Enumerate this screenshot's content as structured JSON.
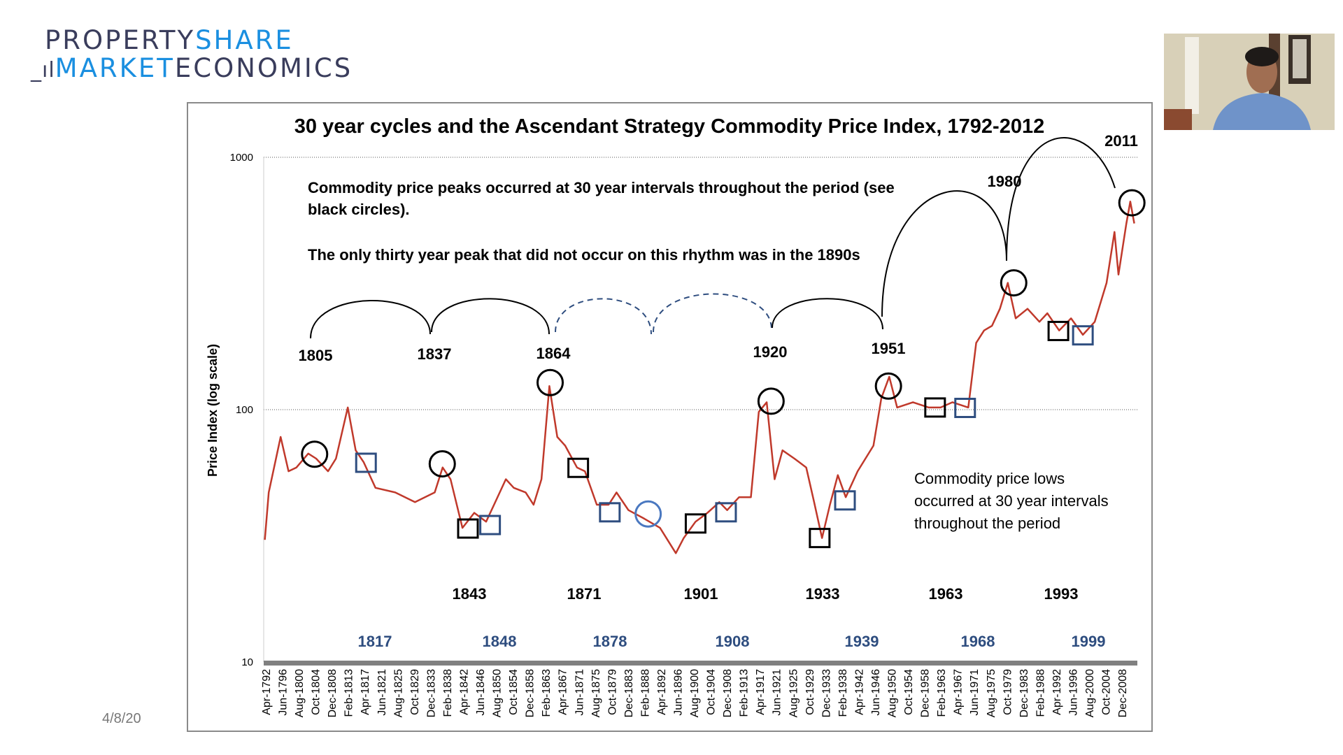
{
  "logo": {
    "line1_a": "PROPERTY",
    "line1_b": "SHARE",
    "line2_a": "MARKET",
    "line2_b": "ECONOMICS"
  },
  "slide_date": "4/8/20",
  "webcam": {
    "label": "presenter video"
  },
  "chart_data": {
    "type": "line",
    "title": "30 year cycles and the Ascendant Strategy Commodity Price Index, 1792-2012",
    "ylabel": "Price Index (log scale)",
    "xlabel": "",
    "yscale": "log",
    "ylim": [
      10,
      1000
    ],
    "yticks": [
      "1000",
      "100",
      "10"
    ],
    "xlim": [
      1792,
      2012
    ],
    "grid": "horizontal dotted at 100 and 1000",
    "line_color": "#c0392b",
    "xtick_labels": [
      "Apr-1792",
      "Jun-1796",
      "Aug-1800",
      "Oct-1804",
      "Dec-1808",
      "Feb-1813",
      "Apr-1817",
      "Jun-1821",
      "Aug-1825",
      "Oct-1829",
      "Dec-1833",
      "Feb-1838",
      "Apr-1842",
      "Jun-1846",
      "Aug-1850",
      "Oct-1854",
      "Dec-1858",
      "Feb-1863",
      "Apr-1867",
      "Jun-1871",
      "Aug-1875",
      "Oct-1879",
      "Dec-1883",
      "Feb-1888",
      "Apr-1892",
      "Jun-1896",
      "Aug-1900",
      "Oct-1904",
      "Dec-1908",
      "Feb-1913",
      "Apr-1917",
      "Jun-1921",
      "Aug-1925",
      "Oct-1929",
      "Dec-1933",
      "Feb-1938",
      "Apr-1942",
      "Jun-1946",
      "Aug-1950",
      "Oct-1954",
      "Dec-1958",
      "Feb-1963",
      "Apr-1967",
      "Jun-1971",
      "Aug-1975",
      "Oct-1979",
      "Dec-1983",
      "Feb-1988",
      "Apr-1992",
      "Jun-1996",
      "Aug-2000",
      "Oct-2004",
      "Dec-2008"
    ],
    "series": [
      {
        "x": [
          1792,
          1793,
          1796,
          1798,
          1800,
          1803,
          1805,
          1808,
          1810,
          1813,
          1815,
          1817,
          1820,
          1825,
          1830,
          1835,
          1837,
          1839,
          1842,
          1845,
          1848,
          1850,
          1853,
          1855,
          1858,
          1860,
          1862,
          1864,
          1866,
          1868,
          1871,
          1873,
          1876,
          1879,
          1881,
          1884,
          1888,
          1892,
          1896,
          1898,
          1901,
          1904,
          1907,
          1909,
          1912,
          1915,
          1917,
          1919,
          1921,
          1923,
          1926,
          1929,
          1931,
          1933,
          1935,
          1937,
          1939,
          1942,
          1946,
          1948,
          1950,
          1952,
          1956,
          1960,
          1963,
          1966,
          1970,
          1972,
          1974,
          1976,
          1978,
          1980,
          1982,
          1985,
          1988,
          1990,
          1993,
          1996,
          1999,
          2002,
          2005,
          2007,
          2008,
          2010,
          2011,
          2012
        ],
        "y": [
          30.5,
          47,
          78,
          57,
          59,
          67,
          64,
          57,
          64,
          102,
          69,
          62,
          49,
          47,
          43,
          47,
          59,
          53,
          34,
          39,
          36,
          42,
          53,
          49,
          47,
          42,
          53,
          124,
          78,
          72,
          59,
          57,
          42,
          42,
          47,
          40,
          37,
          34,
          27,
          31,
          36,
          39,
          43,
          40,
          45,
          45,
          98,
          107,
          53,
          69,
          64,
          59,
          43,
          31,
          42,
          55,
          45,
          57,
          72,
          111,
          135,
          102,
          107,
          102,
          102,
          107,
          102,
          184,
          206,
          215,
          251,
          318,
          230,
          251,
          223,
          241,
          206,
          230,
          198,
          223,
          318,
          506,
          343,
          547,
          668,
          547
        ]
      }
    ],
    "annotations": {
      "peaks_text_1": "Commodity price peaks occurred at 30 year intervals throughout the period (see",
      "peaks_text_2": "black circles).",
      "exception_text": "The only thirty year peak that did not occur  on this rhythm was in the 1890s",
      "lows_text_1": "Commodity price lows",
      "lows_text_2": "occurred at 30 year intervals",
      "lows_text_3": "throughout the period",
      "peak_labels": [
        "1805",
        "1837",
        "1864",
        "1920",
        "1951",
        "1980",
        "2011"
      ],
      "low_labels": [
        "1843",
        "1871",
        "1901",
        "1933",
        "1963",
        "1993"
      ],
      "blue_labels": [
        "1817",
        "1848",
        "1878",
        "1908",
        "1939",
        "1968",
        "1999"
      ],
      "peak_circles": [
        {
          "x": 1804.6,
          "y": 66.6
        },
        {
          "x": 1836.9,
          "y": 61
        },
        {
          "x": 1864.2,
          "y": 128
        },
        {
          "x": 1920.1,
          "y": 108
        },
        {
          "x": 1949.8,
          "y": 124
        },
        {
          "x": 1981.5,
          "y": 318
        },
        {
          "x": 2011.4,
          "y": 660
        }
      ],
      "low_squares_black": [
        {
          "x": 1843.4,
          "y": 33.8
        },
        {
          "x": 1871.3,
          "y": 58.8
        },
        {
          "x": 1901,
          "y": 35.4
        },
        {
          "x": 1932.4,
          "y": 31
        },
        {
          "x": 1961.6,
          "y": 102
        },
        {
          "x": 1992.8,
          "y": 205
        }
      ],
      "low_squares_blue": [
        {
          "x": 1817.6,
          "y": 61.6
        },
        {
          "x": 1849,
          "y": 34.9
        },
        {
          "x": 1879.3,
          "y": 39.2
        },
        {
          "x": 1908.7,
          "y": 39.2
        },
        {
          "x": 1938.8,
          "y": 43.7
        },
        {
          "x": 1969.2,
          "y": 101.6
        },
        {
          "x": 1999,
          "y": 197
        }
      ],
      "blue_circle": {
        "x": 1889,
        "y": 38.6
      },
      "black_color": "#000000",
      "blue_color": "#2e4d7f"
    }
  }
}
